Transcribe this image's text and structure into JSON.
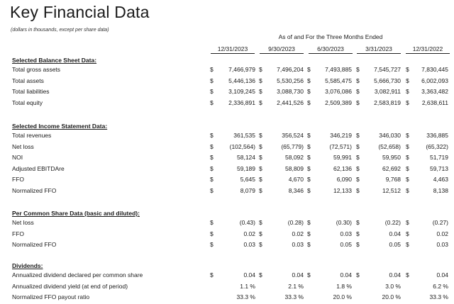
{
  "title": "Key Financial Data",
  "subtitle": "(dollars in thousands, except per share data)",
  "period_header": "As of and For the Three Months Ended",
  "columns": [
    "12/31/2023",
    "9/30/2023",
    "6/30/2023",
    "3/31/2023",
    "12/31/2022"
  ],
  "sections": [
    {
      "heading": "Selected Balance Sheet Data:",
      "rows": [
        {
          "label": "Total gross assets",
          "values": [
            "$ 7,466,979",
            "$ 7,496,204",
            "$ 7,493,885",
            "$ 7,545,727",
            "$ 7,830,445"
          ]
        },
        {
          "label": "Total assets",
          "values": [
            "$ 5,446,136",
            "$ 5,530,256",
            "$ 5,585,475",
            "$ 5,666,730",
            "$ 6,002,093"
          ]
        },
        {
          "label": "Total liabilities",
          "values": [
            "$ 3,109,245",
            "$ 3,088,730",
            "$ 3,076,086",
            "$ 3,082,911",
            "$ 3,363,482"
          ]
        },
        {
          "label": "Total equity",
          "values": [
            "$ 2,336,891",
            "$ 2,441,526",
            "$ 2,509,389",
            "$ 2,583,819",
            "$ 2,638,611"
          ]
        }
      ]
    },
    {
      "heading": "Selected Income Statement Data:",
      "rows": [
        {
          "label": "Total revenues",
          "values": [
            "361,535",
            "356,524",
            "346,219",
            "346,030",
            "336,885"
          ]
        },
        {
          "label": "Net loss",
          "values": [
            "(102,564)",
            "(65,779)",
            "(72,571)",
            "(52,658)",
            "(65,322)"
          ]
        },
        {
          "label": "NOI",
          "values": [
            "58,124",
            "58,092",
            "59,991",
            "59,950",
            "51,719"
          ]
        },
        {
          "label": "Adjusted EBITDAre",
          "values": [
            "59,189",
            "58,809",
            "62,136",
            "62,692",
            "59,713"
          ]
        },
        {
          "label": "FFO",
          "values": [
            "5,645",
            "4,670",
            "6,090",
            "9,768",
            "4,463"
          ]
        },
        {
          "label": "Normalized FFO",
          "values": [
            "8,079",
            "8,346",
            "12,133",
            "12,512",
            "8,138"
          ]
        }
      ]
    },
    {
      "heading": "Per Common Share Data (basic and diluted):",
      "rows": [
        {
          "label": "Net loss",
          "values": [
            "(0.43)",
            "(0.28)",
            "(0.30)",
            "(0.22)",
            "(0.27)"
          ]
        },
        {
          "label": "FFO",
          "values": [
            "0.02",
            "0.02",
            "0.03",
            "0.04",
            "0.02"
          ]
        },
        {
          "label": "Normalized FFO",
          "values": [
            "0.03",
            "0.03",
            "0.05",
            "0.05",
            "0.03"
          ]
        }
      ]
    },
    {
      "heading": "Dividends:",
      "rows": [
        {
          "label": "Annualized dividend declared per common share",
          "values": [
            "0.04",
            "0.04",
            "0.04",
            "0.04",
            "0.04"
          ]
        },
        {
          "label": "Annualized dividend yield (at end of period)",
          "values": [
            "1.1 %",
            "2.1 %",
            "1.8 %",
            "3.0 %",
            "6.2 %"
          ]
        },
        {
          "label": "Normalized FFO payout ratio",
          "values": [
            "33.3 %",
            "33.3 %",
            "20.0 %",
            "20.0 %",
            "33.3 %"
          ]
        }
      ]
    }
  ],
  "currency_symbol": "$"
}
